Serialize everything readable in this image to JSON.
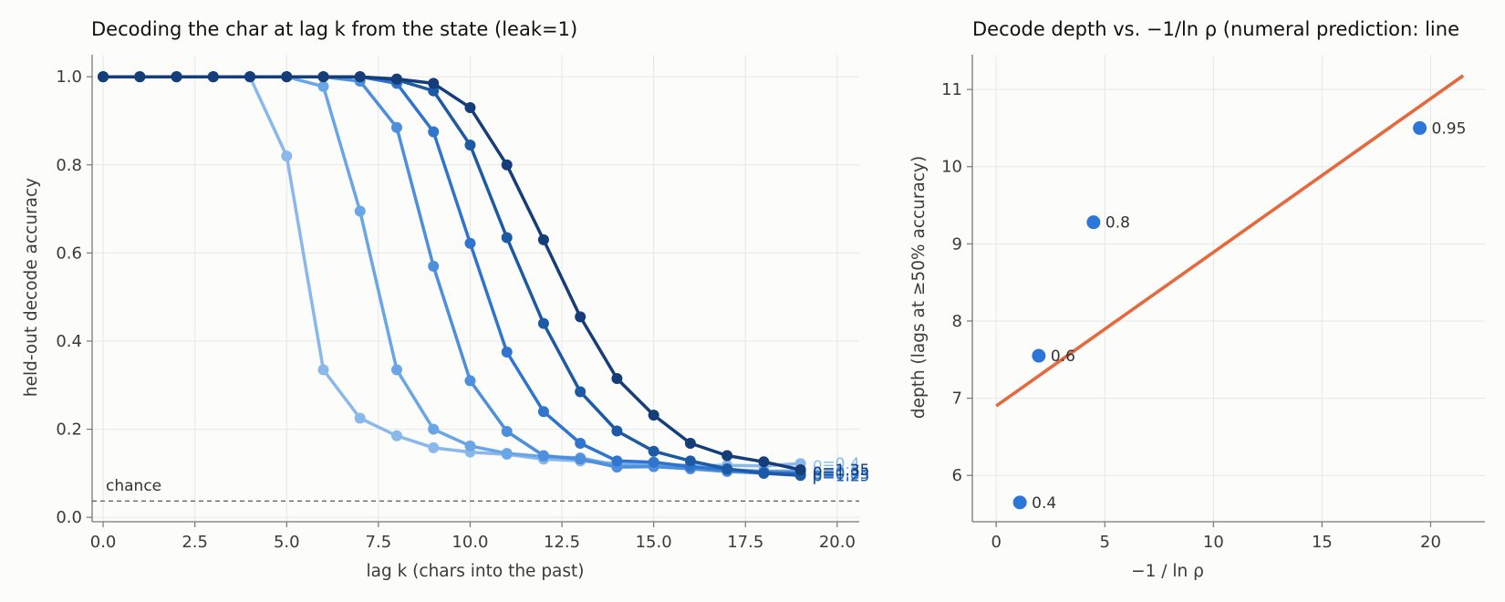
{
  "chart_data": [
    {
      "type": "line",
      "title": "Decoding the char at lag k from the state (leak=1)",
      "xlabel": "lag k (chars into the past)",
      "ylabel": "held-out decode accuracy",
      "xlim": [
        -0.3,
        20.6
      ],
      "ylim": [
        -0.01,
        1.05
      ],
      "xticks": [
        0.0,
        2.5,
        5.0,
        7.5,
        10.0,
        12.5,
        15.0,
        17.5,
        20.0
      ],
      "xtick_labels": [
        "0.0",
        "2.5",
        "5.0",
        "7.5",
        "10.0",
        "12.5",
        "15.0",
        "17.5",
        "20.0"
      ],
      "yticks": [
        0.0,
        0.2,
        0.4,
        0.6,
        0.8,
        1.0
      ],
      "ytick_labels": [
        "0.0",
        "0.2",
        "0.4",
        "0.6",
        "0.8",
        "1.0"
      ],
      "grid": true,
      "chance": {
        "label": "chance",
        "value": 0.037
      },
      "x": [
        0,
        1,
        2,
        3,
        4,
        5,
        6,
        7,
        8,
        9,
        10,
        11,
        12,
        13,
        14,
        15,
        16,
        17,
        18,
        19
      ],
      "series": [
        {
          "name": "ρ=0.4",
          "end_label": "ρ=0.4",
          "color": "#8ab8ea",
          "values": [
            1.0,
            1.0,
            1.0,
            1.0,
            1.0,
            0.82,
            0.335,
            0.225,
            0.185,
            0.158,
            0.148,
            0.143,
            0.132,
            0.128,
            0.122,
            0.12,
            0.118,
            0.118,
            0.117,
            0.122
          ]
        },
        {
          "name": "ρ=0.6",
          "end_label": "ρ=0.6",
          "color": "#6aa6e6",
          "values": [
            1.0,
            1.0,
            1.0,
            1.0,
            1.0,
            1.0,
            0.978,
            0.695,
            0.335,
            0.2,
            0.162,
            0.145,
            0.138,
            0.135,
            0.118,
            0.118,
            0.112,
            0.108,
            0.105,
            0.105
          ]
        },
        {
          "name": "ρ=0.8",
          "end_label": "ρ=0.8",
          "color": "#4d8fdc",
          "values": [
            1.0,
            1.0,
            1.0,
            1.0,
            1.0,
            1.0,
            1.0,
            0.99,
            0.885,
            0.57,
            0.31,
            0.195,
            0.14,
            0.132,
            0.114,
            0.115,
            0.11,
            0.104,
            0.1,
            0.098
          ]
        },
        {
          "name": "ρ=0.95",
          "end_label": "ρ=0.95",
          "color": "#2f74cf",
          "values": [
            1.0,
            1.0,
            1.0,
            1.0,
            1.0,
            1.0,
            1.0,
            1.0,
            0.985,
            0.875,
            0.622,
            0.375,
            0.24,
            0.168,
            0.128,
            0.125,
            0.115,
            0.108,
            0.102,
            0.1
          ]
        },
        {
          "name": "ρ=1.25",
          "end_label": "ρ=1.25",
          "color": "#1c5aa6",
          "values": [
            1.0,
            1.0,
            1.0,
            1.0,
            1.0,
            1.0,
            1.0,
            1.0,
            0.993,
            0.968,
            0.845,
            0.635,
            0.44,
            0.285,
            0.196,
            0.15,
            0.128,
            0.11,
            0.1,
            0.095
          ]
        },
        {
          "name": "ρ=1.35",
          "end_label": "ρ=1.35",
          "color": "#143d7a",
          "values": [
            1.0,
            1.0,
            1.0,
            1.0,
            1.0,
            1.0,
            1.0,
            1.0,
            0.995,
            0.985,
            0.93,
            0.8,
            0.63,
            0.455,
            0.315,
            0.232,
            0.168,
            0.14,
            0.126,
            0.108
          ]
        }
      ]
    },
    {
      "type": "scatter",
      "title": "Decode depth vs. −1/ln ρ (numeral prediction: line",
      "xlabel": "−1 / ln ρ",
      "ylabel": "depth (lags at ≥50% accuracy)",
      "xlim": [
        -1.1,
        22.5
      ],
      "ylim": [
        5.4,
        11.45
      ],
      "xticks": [
        0,
        5,
        10,
        15,
        20
      ],
      "xtick_labels": [
        "0",
        "5",
        "10",
        "15",
        "20"
      ],
      "yticks": [
        6,
        7,
        8,
        9,
        10,
        11
      ],
      "ytick_labels": [
        "6",
        "7",
        "8",
        "9",
        "10",
        "11"
      ],
      "grid": true,
      "point_color": "#2b76d8",
      "line_color": "#e4693d",
      "points": [
        {
          "label": "0.4",
          "x": 1.09,
          "y": 5.65
        },
        {
          "label": "0.6",
          "x": 1.96,
          "y": 7.55
        },
        {
          "label": "0.8",
          "x": 4.48,
          "y": 9.28
        },
        {
          "label": "0.95",
          "x": 19.5,
          "y": 10.5
        }
      ],
      "fit_line": {
        "x": [
          0,
          21.5
        ],
        "y": [
          6.9,
          11.18
        ]
      }
    }
  ]
}
